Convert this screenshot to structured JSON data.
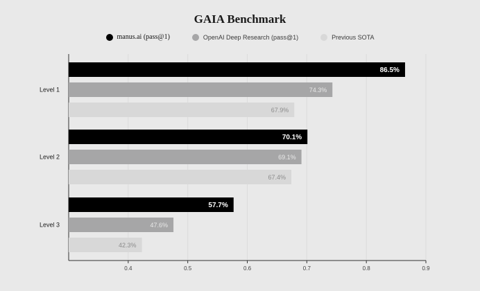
{
  "chart_data": {
    "type": "bar",
    "orientation": "horizontal",
    "title": "GAIA Benchmark",
    "categories": [
      "Level 1",
      "Level 2",
      "Level 3"
    ],
    "series": [
      {
        "name": "manus.ai (pass@1)",
        "color": "#000000",
        "label_color": "#ffffff",
        "values": [
          0.865,
          0.701,
          0.577
        ],
        "labels": [
          "86.5%",
          "70.1%",
          "57.7%"
        ]
      },
      {
        "name": "OpenAI Deep Research (pass@1)",
        "color": "#a6a6a7",
        "label_color": "#e9e9e9",
        "values": [
          0.743,
          0.691,
          0.476
        ],
        "labels": [
          "74.3%",
          "69.1%",
          "47.6%"
        ]
      },
      {
        "name": "Previous SOTA",
        "color": "#d8d8d8",
        "label_color": "#8c8c8c",
        "values": [
          0.679,
          0.674,
          0.423
        ],
        "labels": [
          "67.9%",
          "67.4%",
          "42.3%"
        ]
      }
    ],
    "xlim": [
      0.3,
      0.9
    ],
    "xticks": [
      "0.4",
      "0.5",
      "0.6",
      "0.7",
      "0.8",
      "0.9"
    ],
    "xlabel": "",
    "ylabel": "",
    "grid": true,
    "legend_position": "top-center"
  }
}
